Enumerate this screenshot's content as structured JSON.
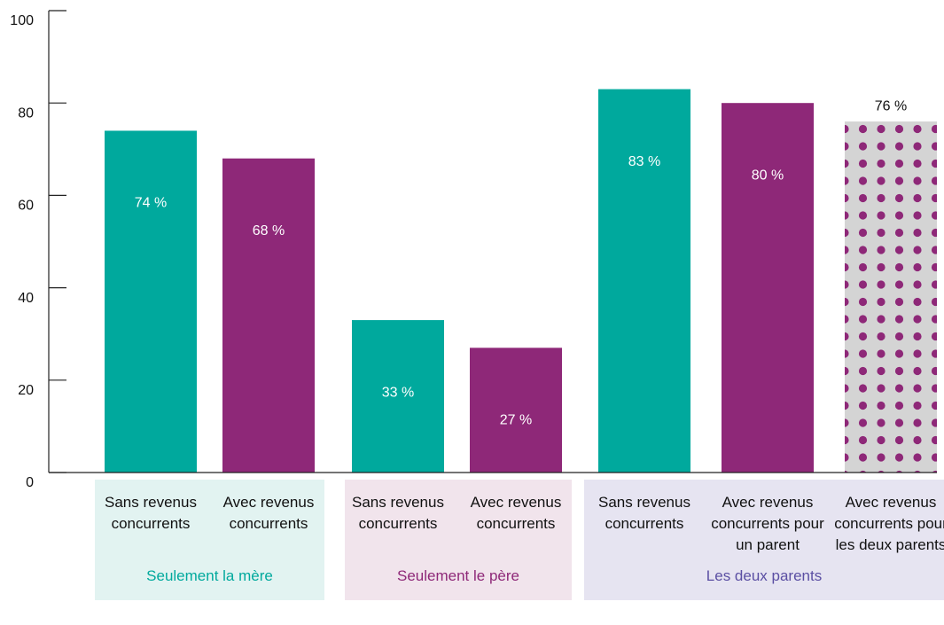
{
  "chart_data": {
    "type": "bar",
    "ylim": [
      0,
      100
    ],
    "yticks": [
      0,
      20,
      40,
      60,
      80,
      100
    ],
    "groups": [
      {
        "name": "Seulement la mère",
        "color": "#00a99d",
        "background": "#e2f3f1",
        "categories": [
          "Sans revenus concurrents",
          "Avec revenus concurrents"
        ],
        "values": [
          74,
          68
        ],
        "value_labels": [
          "74 %",
          "68 %"
        ],
        "colors": [
          "#00a99d",
          "#8e2878"
        ],
        "bar_styles": [
          "solid",
          "solid"
        ]
      },
      {
        "name": "Seulement le père",
        "color": "#8e2878",
        "background": "#f1e4ec",
        "categories": [
          "Sans revenus concurrents",
          "Avec revenus concurrents"
        ],
        "values": [
          33,
          27
        ],
        "value_labels": [
          "33 %",
          "27 %"
        ],
        "colors": [
          "#00a99d",
          "#8e2878"
        ],
        "bar_styles": [
          "solid",
          "solid"
        ]
      },
      {
        "name": "Les deux parents",
        "color": "#5b4fa3",
        "background": "#e6e4f1",
        "categories": [
          "Sans revenus concurrents",
          "Avec revenus concurrents pour un parent",
          "Avec revenus concurrents pour les deux parents"
        ],
        "values": [
          83,
          80,
          76
        ],
        "value_labels": [
          "83 %",
          "80 %",
          "76 %"
        ],
        "colors": [
          "#00a99d",
          "#8e2878",
          "#8e2878"
        ],
        "bar_styles": [
          "solid",
          "solid",
          "dotted"
        ]
      }
    ]
  }
}
